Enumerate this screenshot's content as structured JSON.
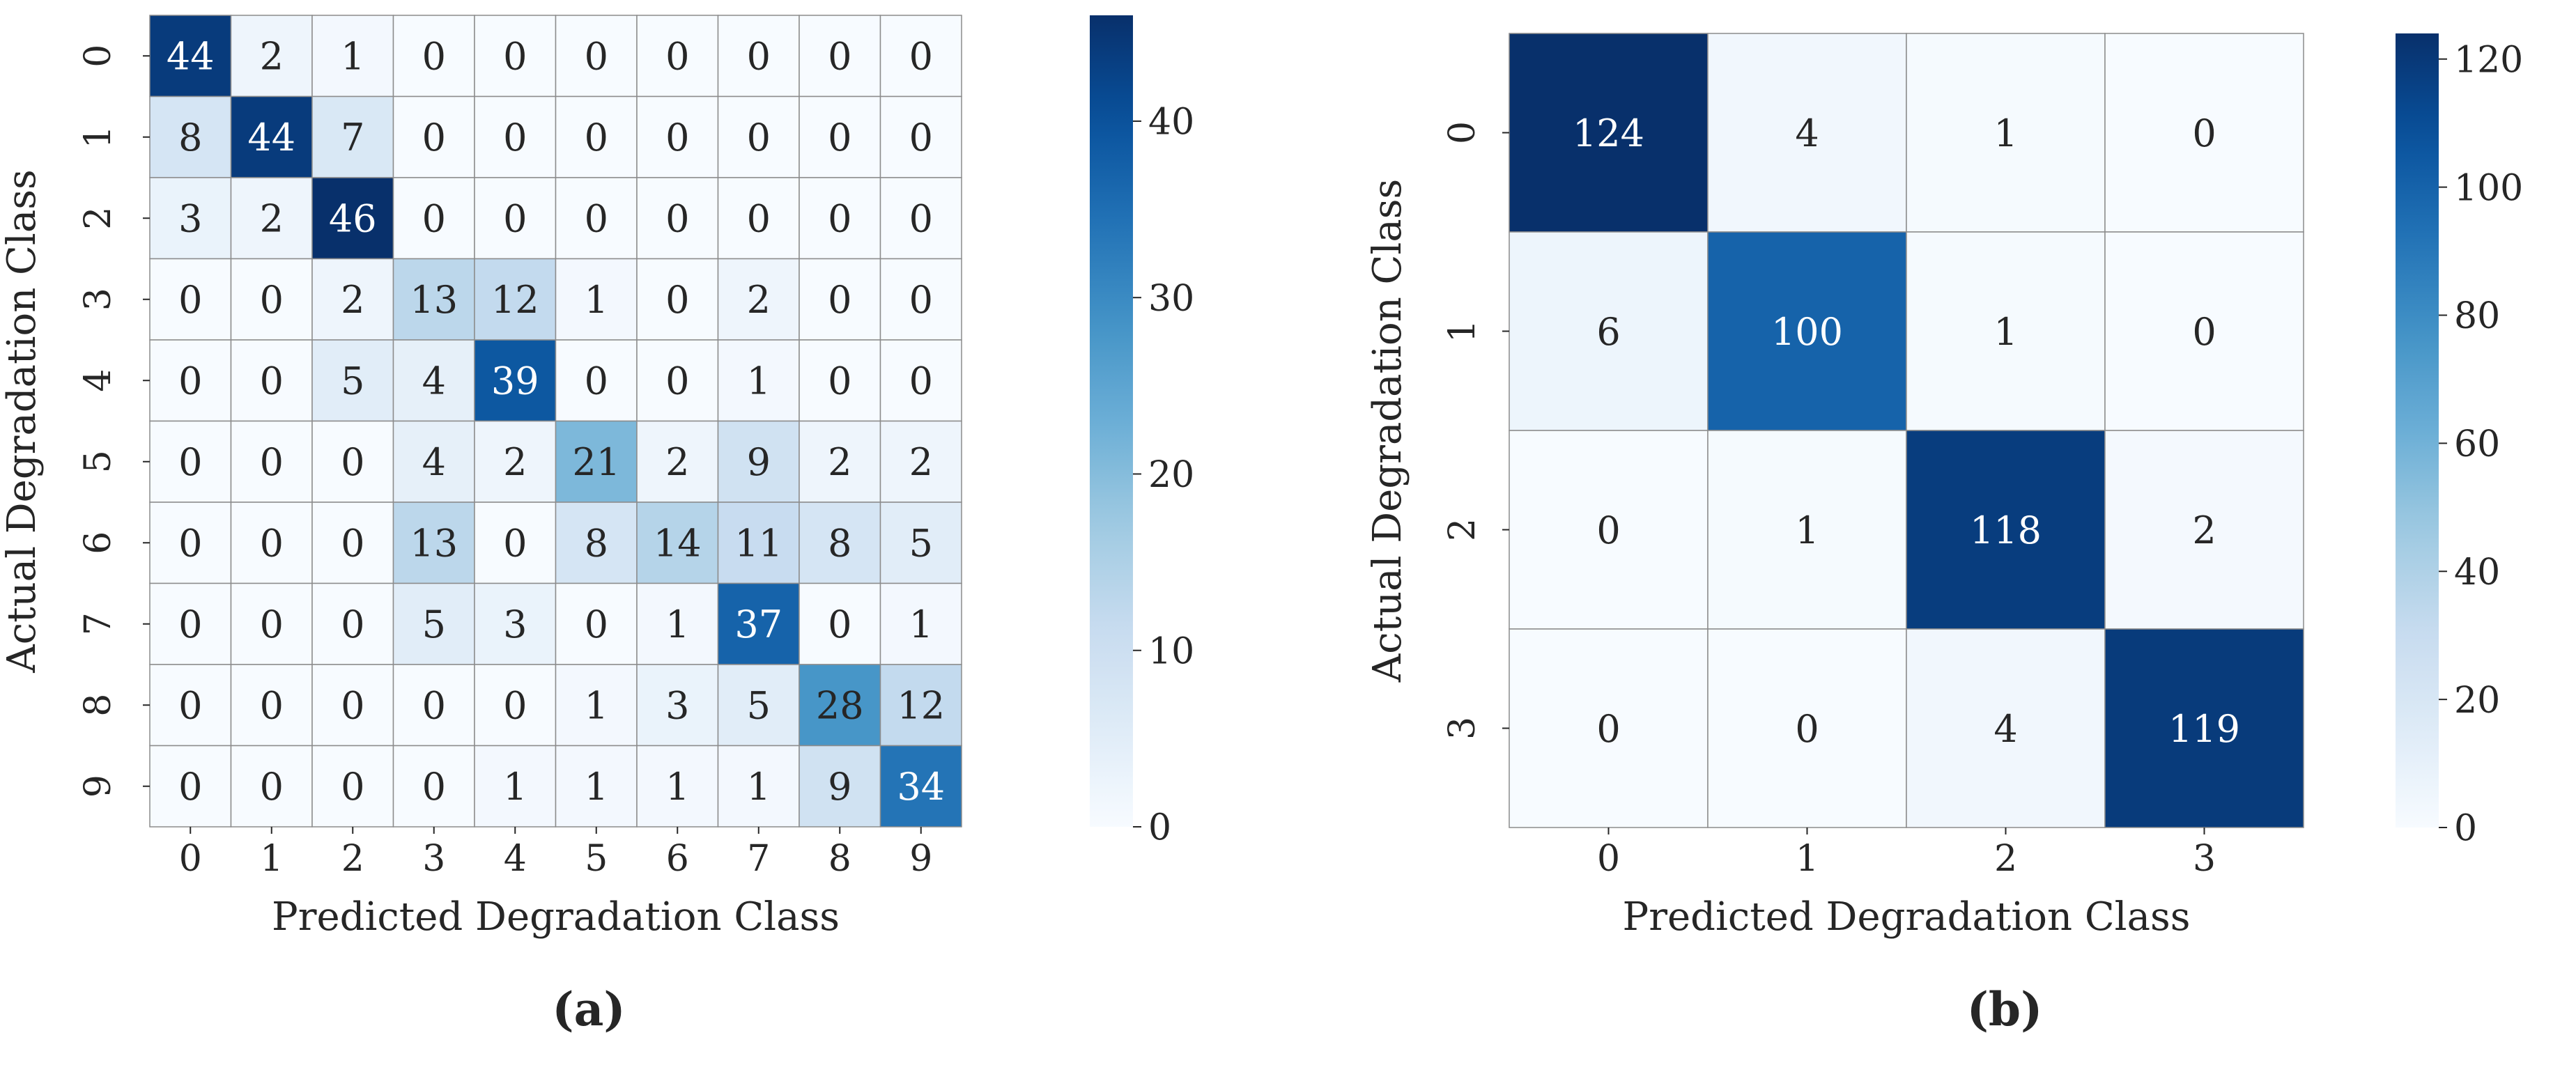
{
  "chart_data": [
    {
      "type": "heatmap",
      "caption": "(a)",
      "xlabel": "Predicted Degradation Class",
      "ylabel": "Actual Degradation Class",
      "x_categories": [
        "0",
        "1",
        "2",
        "3",
        "4",
        "5",
        "6",
        "7",
        "8",
        "9"
      ],
      "y_categories": [
        "0",
        "1",
        "2",
        "3",
        "4",
        "5",
        "6",
        "7",
        "8",
        "9"
      ],
      "values": [
        [
          44,
          2,
          1,
          0,
          0,
          0,
          0,
          0,
          0,
          0
        ],
        [
          8,
          44,
          7,
          0,
          0,
          0,
          0,
          0,
          0,
          0
        ],
        [
          3,
          2,
          46,
          0,
          0,
          0,
          0,
          0,
          0,
          0
        ],
        [
          0,
          0,
          2,
          13,
          12,
          1,
          0,
          2,
          0,
          0
        ],
        [
          0,
          0,
          5,
          4,
          39,
          0,
          0,
          1,
          0,
          0
        ],
        [
          0,
          0,
          0,
          4,
          2,
          21,
          2,
          9,
          2,
          2
        ],
        [
          0,
          0,
          0,
          13,
          0,
          8,
          14,
          11,
          8,
          5
        ],
        [
          0,
          0,
          0,
          5,
          3,
          0,
          1,
          37,
          0,
          1
        ],
        [
          0,
          0,
          0,
          0,
          0,
          1,
          3,
          5,
          28,
          12
        ],
        [
          0,
          0,
          0,
          0,
          1,
          1,
          1,
          1,
          9,
          34
        ]
      ],
      "colorbar": {
        "min": 0,
        "max": 46,
        "ticks": [
          0,
          10,
          20,
          30,
          40
        ]
      },
      "colormap": "Blues",
      "grid": true
    },
    {
      "type": "heatmap",
      "caption": "(b)",
      "xlabel": "Predicted Degradation Class",
      "ylabel": "Actual Degradation Class",
      "x_categories": [
        "0",
        "1",
        "2",
        "3"
      ],
      "y_categories": [
        "0",
        "1",
        "2",
        "3"
      ],
      "values": [
        [
          124,
          4,
          1,
          0
        ],
        [
          6,
          100,
          1,
          0
        ],
        [
          0,
          1,
          118,
          2
        ],
        [
          0,
          0,
          4,
          119
        ]
      ],
      "colorbar": {
        "min": 0,
        "max": 124,
        "ticks": [
          0,
          20,
          40,
          60,
          80,
          100,
          120
        ]
      },
      "colormap": "Blues",
      "grid": true
    }
  ]
}
